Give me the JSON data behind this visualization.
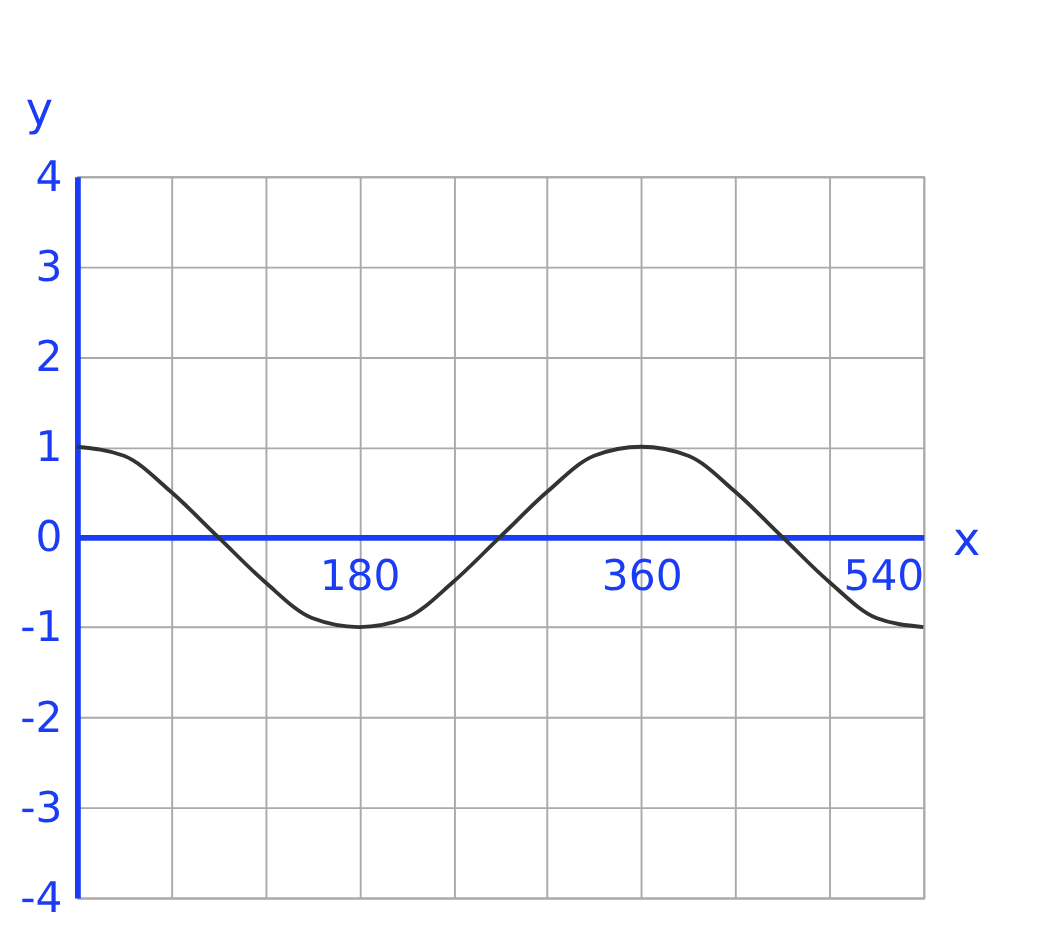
{
  "chart_data": {
    "type": "line",
    "xlabel": "x",
    "ylabel": "y",
    "x": [
      0,
      30,
      60,
      90,
      120,
      150,
      180,
      210,
      240,
      270,
      300,
      330,
      360,
      390,
      420,
      450,
      480,
      510,
      540
    ],
    "values": [
      1,
      0.9,
      0.5,
      0,
      -0.5,
      -0.9,
      -1,
      -0.9,
      -0.5,
      0,
      0.5,
      0.9,
      1,
      0.9,
      0.5,
      0,
      -0.5,
      -0.9,
      -1
    ],
    "color": "#333333",
    "line_style": "solid",
    "marker": "none",
    "grid": true,
    "xlim": [
      0,
      540
    ],
    "ylim": [
      -4,
      4
    ],
    "xticks": [
      {
        "value": 0,
        "label": null
      },
      {
        "value": 60,
        "label": null
      },
      {
        "value": 120,
        "label": null
      },
      180,
      {
        "value": 240,
        "label": null
      },
      {
        "value": 300,
        "label": null
      },
      360,
      {
        "value": 420,
        "label": null
      },
      {
        "value": 480,
        "label": null
      },
      540
    ],
    "yticks": [
      -4,
      -3,
      -2,
      -1,
      0,
      1,
      2,
      3,
      4
    ]
  }
}
